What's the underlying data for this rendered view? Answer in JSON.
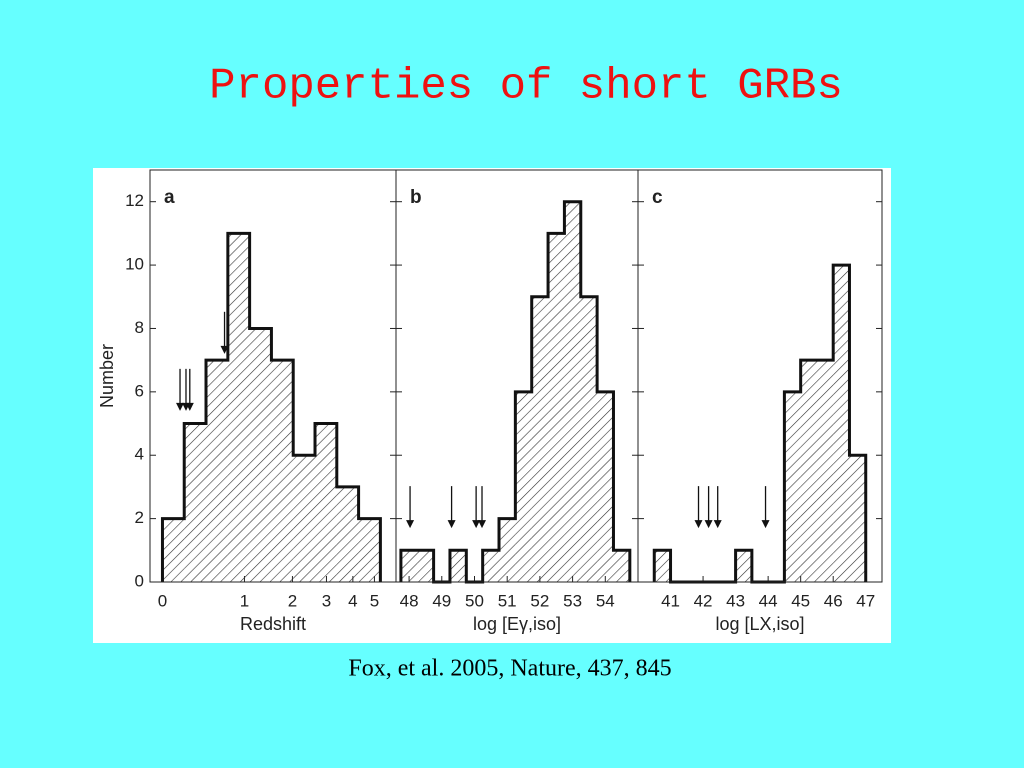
{
  "header": {
    "title": "Properties of short GRBs"
  },
  "caption": "Fox, et al. 2005, Nature, 437, 845",
  "chart_data": [
    {
      "type": "histogram",
      "panel": "a",
      "x_label": "Redshift",
      "y_label": "Number",
      "xscale": "log1p",
      "bins": [
        0,
        0.202,
        0.445,
        0.738,
        1.089,
        1.512,
        2.02,
        2.631,
        3.365,
        4.248,
        5.31
      ],
      "values": [
        2,
        5,
        7,
        11,
        8,
        7,
        4,
        5,
        3,
        2
      ],
      "arrows": {
        "x": [
          0.16,
          0.22,
          0.26,
          0.69
        ],
        "y": [
          5.4,
          5.4,
          5.4,
          7.2
        ]
      },
      "xlim": [
        -0.1,
        6.2
      ],
      "ylim": [
        0,
        13
      ],
      "xticks": [
        0,
        1,
        2,
        3,
        4,
        5
      ],
      "yticks": [
        0,
        2,
        4,
        6,
        8,
        10,
        12
      ],
      "color": "#111111"
    },
    {
      "type": "histogram",
      "panel": "b",
      "x_label": "log [Eγ,iso]",
      "bins": [
        47.75,
        48.25,
        48.75,
        49.25,
        49.75,
        50.25,
        50.75,
        51.25,
        51.75,
        52.25,
        52.75,
        53.25,
        53.75,
        54.25,
        54.75
      ],
      "values": [
        1,
        1,
        0,
        1,
        0,
        1,
        2,
        6,
        9,
        11,
        12,
        9,
        6,
        1
      ],
      "arrows": {
        "x": [
          48.03,
          49.3,
          50.05,
          50.23
        ],
        "y": [
          1.7,
          1.7,
          1.7,
          1.7
        ]
      },
      "xlim": [
        47.6,
        55
      ],
      "ylim": [
        0,
        13
      ],
      "xticks": [
        48,
        49,
        50,
        51,
        52,
        53,
        54
      ],
      "color": "#111111"
    },
    {
      "type": "histogram",
      "panel": "c",
      "x_label": "log [LX,iso]",
      "bins": [
        40.5,
        41,
        41.5,
        42,
        42.5,
        43,
        43.5,
        44,
        44.5,
        45,
        45.5,
        46,
        46.5,
        47
      ],
      "values": [
        1,
        0,
        0,
        0,
        0,
        1,
        0,
        0,
        6,
        7,
        7,
        10,
        4
      ],
      "arrows": {
        "x": [
          41.86,
          42.17,
          42.45,
          43.92
        ],
        "y": [
          1.7,
          1.7,
          1.7,
          1.7
        ]
      },
      "xlim": [
        40,
        47.5
      ],
      "ylim": [
        0,
        13
      ],
      "xticks": [
        41,
        42,
        43,
        44,
        45,
        46,
        47
      ],
      "color": "#111111"
    }
  ]
}
